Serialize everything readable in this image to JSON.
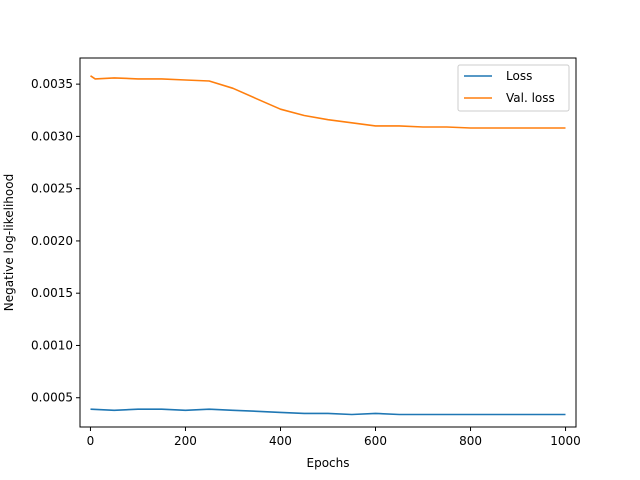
{
  "chart_data": {
    "type": "line",
    "title": "",
    "xlabel": "Epochs",
    "ylabel": "Negative log-likelihood",
    "xlim": [
      -22,
      1022
    ],
    "ylim": [
      0.00022,
      0.00375
    ],
    "x_ticks": [
      0,
      200,
      400,
      600,
      800,
      1000
    ],
    "x_tick_labels": [
      "0",
      "200",
      "400",
      "600",
      "800",
      "1000"
    ],
    "y_ticks": [
      0.0005,
      0.001,
      0.0015,
      0.002,
      0.0025,
      0.003,
      0.0035
    ],
    "y_tick_labels": [
      "0.0005",
      "0.0010",
      "0.0015",
      "0.0020",
      "0.0025",
      "0.0030",
      "0.0035"
    ],
    "grid": false,
    "legend_position": "top-right",
    "series": [
      {
        "name": "Loss",
        "color": "#1f77b4",
        "x": [
          0,
          50,
          100,
          150,
          200,
          250,
          300,
          350,
          400,
          450,
          500,
          550,
          600,
          650,
          700,
          750,
          800,
          850,
          900,
          950,
          1000
        ],
        "values": [
          0.00039,
          0.00038,
          0.00039,
          0.00039,
          0.00038,
          0.00039,
          0.00038,
          0.00037,
          0.00036,
          0.00035,
          0.00035,
          0.00034,
          0.00035,
          0.00034,
          0.00034,
          0.00034,
          0.00034,
          0.00034,
          0.00034,
          0.00034,
          0.00034
        ]
      },
      {
        "name": "Val. loss",
        "color": "#ff7f0e",
        "x": [
          0,
          10,
          50,
          100,
          150,
          200,
          250,
          300,
          350,
          400,
          450,
          500,
          550,
          600,
          650,
          700,
          750,
          800,
          850,
          900,
          950,
          1000
        ],
        "values": [
          0.00358,
          0.00355,
          0.00356,
          0.00355,
          0.00355,
          0.00354,
          0.00353,
          0.00346,
          0.00336,
          0.00326,
          0.0032,
          0.00316,
          0.00313,
          0.0031,
          0.0031,
          0.00309,
          0.00309,
          0.00308,
          0.00308,
          0.00308,
          0.00308,
          0.00308
        ]
      }
    ]
  }
}
